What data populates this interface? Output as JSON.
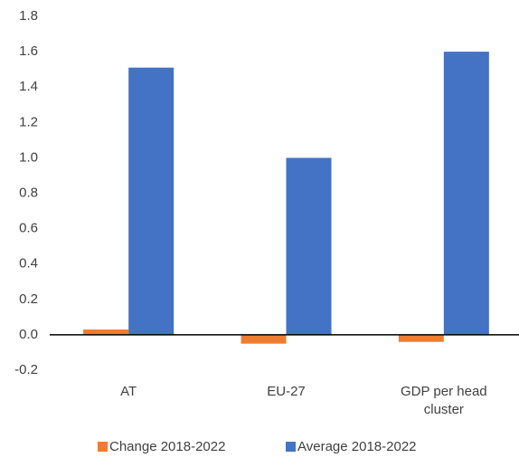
{
  "chart_data": {
    "type": "bar",
    "categories": [
      "AT",
      "EU-27",
      "GDP per head cluster"
    ],
    "series": [
      {
        "name": "Change 2018-2022",
        "color": "#ed7d31",
        "values": [
          0.03,
          -0.05,
          -0.04
        ]
      },
      {
        "name": "Average 2018-2022",
        "color": "#4472c4",
        "values": [
          1.51,
          1.0,
          1.6
        ]
      }
    ],
    "ylim": [
      -0.2,
      1.8
    ],
    "yticks": [
      -0.2,
      {
        "value": 0,
        "label": "0.0"
      },
      0.2,
      0.4,
      0.6,
      0.8,
      {
        "value": 1,
        "label": "1.0"
      },
      1.2,
      1.4,
      1.6,
      1.8
    ],
    "grid": false,
    "legend": "bottom"
  }
}
